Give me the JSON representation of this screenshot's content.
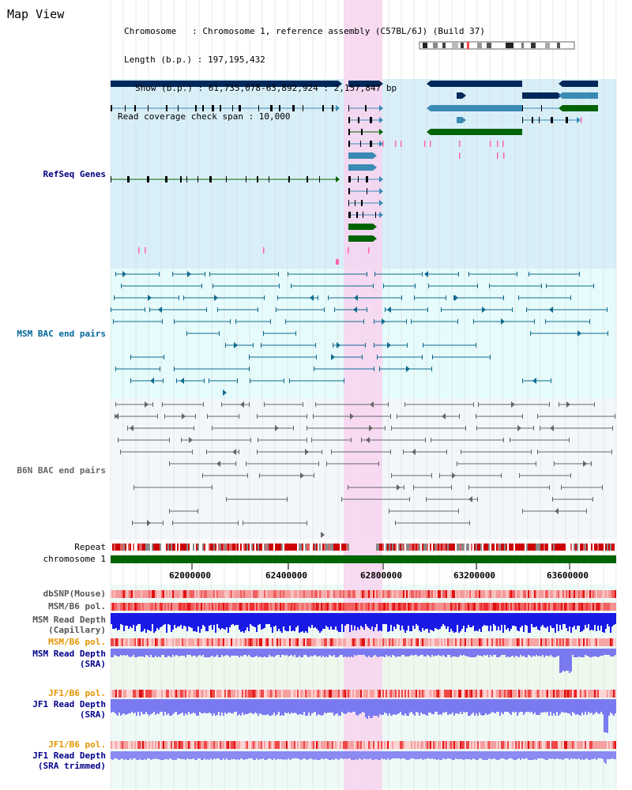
{
  "view_title": "Map View",
  "info": {
    "chromosome": "Chromosome   : Chromosome 1, reference assembly (C57BL/6J) (Build 37)",
    "length": "Length (b.p.) : 197,195,432",
    "show": "Show (b.p.) : 61,735,078-63,892,924 : 2,157,847 bp",
    "coverage": "Read coverage check span : 10,000"
  },
  "tracks": {
    "refseq": "RefSeq Genes",
    "msm_bac": "MSM BAC end pairs",
    "b6n_bac": "B6N BAC end pairs",
    "repeat": "Repeat",
    "chromosome": "chromosome 1",
    "dbsnp": "dbSNP(Mouse)",
    "msm_b6_pol_1": "MSM/B6 pol.",
    "msm_depth_cap": "MSM Read Depth\n(Capillary)",
    "msm_b6_pol_2": "MSM/B6 pol.",
    "msm_depth_sra": "MSM Read Depth\n(SRA)",
    "jf1_b6_pol_1": "JF1/B6 pol.",
    "jf1_depth_sra": "JF1 Read Depth\n(SRA)",
    "jf1_b6_pol_2": "JF1/B6 pol.",
    "jf1_depth_trim": "JF1 Read Depth\n(SRA trimmed)"
  },
  "axis": {
    "ticks": [
      "62000000",
      "62400000",
      "62800000",
      "63200000",
      "63600000"
    ]
  },
  "colors": {
    "refseq_label": "#000080",
    "msm_label": "#006699",
    "b6n_label": "#666666",
    "pol_label": "#e69500",
    "depth_label": "#00008b",
    "highlight": "#f7d4ee",
    "refseq_bg": "#d8eff8",
    "msm_bg": "#e6fbfb",
    "b6n_bg": "#f4f7fa",
    "green": "#006400",
    "navy": "#00285a",
    "teal": "#3a8ab4"
  }
}
